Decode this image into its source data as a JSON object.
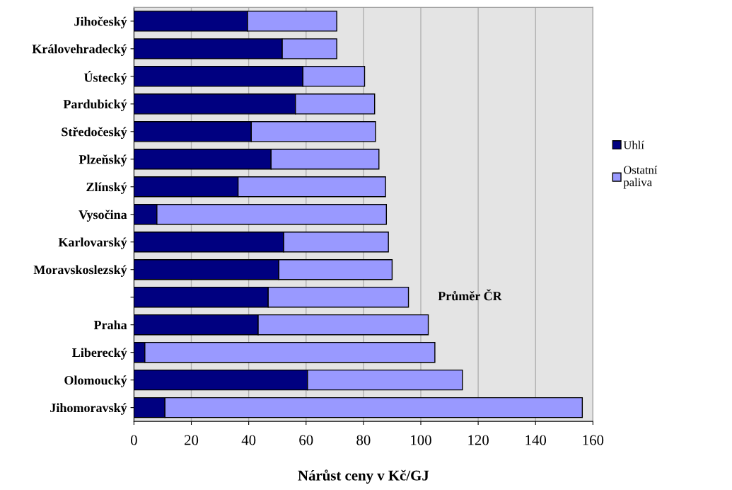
{
  "chart_data": {
    "type": "bar",
    "orientation": "horizontal",
    "stacked": true,
    "xlabel": "Nárůst ceny v Kč/GJ",
    "categories": [
      "Jihočeský",
      "Královehradecký",
      "Ústecký",
      "Pardubický",
      "Středočeský",
      "Plzeňský",
      "Zlínský",
      "Vysočina",
      "Karlovarský",
      "Moravskoslezský",
      null,
      "Praha",
      "Liberecký",
      "Olomoucký",
      "Jihomoravský"
    ],
    "series": [
      {
        "name": "Uhlí",
        "color": "#000080",
        "values": [
          39.6,
          51.7,
          58.9,
          56.3,
          40.9,
          47.8,
          36.3,
          8.0,
          52.2,
          50.5,
          46.8,
          43.3,
          3.8,
          60.5,
          10.8
        ]
      },
      {
        "name": "Ostatní\npaliva",
        "color": "#9999ff",
        "values": [
          31.1,
          19.0,
          21.5,
          27.6,
          43.3,
          37.6,
          51.4,
          80.0,
          36.5,
          39.5,
          48.9,
          59.3,
          101.1,
          54.0,
          145.5
        ]
      }
    ],
    "annotations": [
      "Průměr ČR"
    ],
    "xlim": [
      0,
      160
    ],
    "xticks": [
      0,
      20,
      40,
      60,
      80,
      100,
      120,
      140,
      160
    ],
    "grid": "x",
    "legend": "right"
  }
}
